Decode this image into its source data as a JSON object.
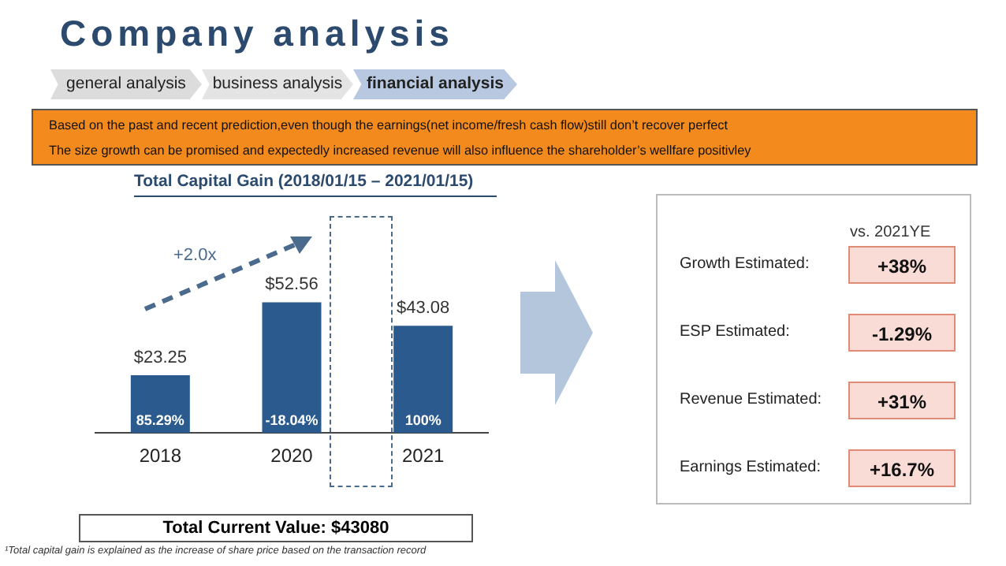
{
  "chart_data": [
    {
      "type": "bar",
      "title": "Total Capital Gain (2018/01/15 – 2021/01/15)",
      "categories": [
        "2018",
        "2020",
        "2021"
      ],
      "values": [
        23.25,
        52.56,
        43.08
      ],
      "value_labels": [
        "$23.25",
        "$52.56",
        "$43.08"
      ],
      "color": "#2b5b8e",
      "grid": false,
      "annotations": [
        "Company analysis",
        "general analysis",
        "business analysis",
        "financial analysis",
        "Based on the past and recent prediction,even though the earnings(net income/fresh cash flow)still don’t recover perfect",
        "The size growth can be promised and expectedly increased revenue will also influence the shareholder’s wellfare positivley",
        "Total Current Value: $43080",
        "¹Total capital gain is explained as the increase of share price based on the transaction record",
        "+2.0x",
        "85.29%",
        "-18.04%",
        "100%"
      ]
    },
    {
      "type": "other",
      "title": "vs. 2021YE",
      "categories": [
        "Growth Estimated",
        "ESP Estimated",
        "Revenue Estimated",
        "Earnings Estimated"
      ],
      "value_labels": [
        "+38%",
        "-1.29%",
        "+31%",
        "+16.7%"
      ],
      "annotations": [
        ":"
      ]
    }
  ]
}
